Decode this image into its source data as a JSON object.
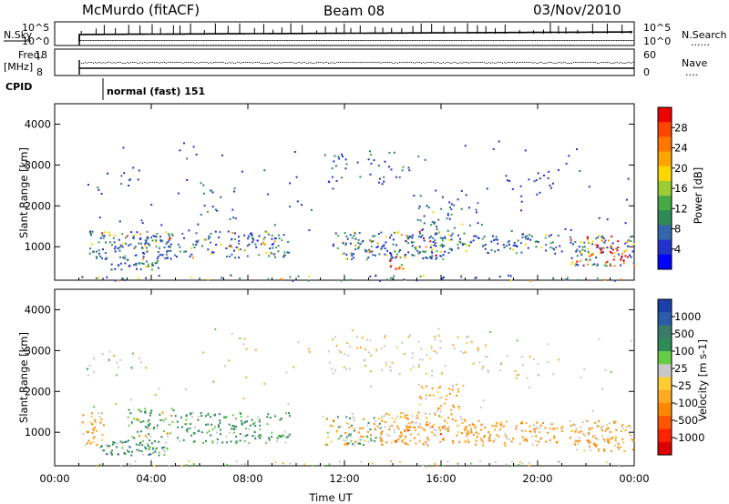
{
  "header": {
    "station": "McMurdo (fitACF)",
    "beam": "Beam 08",
    "date": "03/Nov/2010"
  },
  "strip_panels": {
    "nsky": {
      "label": "N.Sky",
      "ticks": [
        "10^5",
        "10^0"
      ],
      "right_ticks": [
        "10^5",
        "10^0"
      ],
      "right_label": "N.Search",
      "right_marker": "......"
    },
    "freq": {
      "label_line1": "Freq.",
      "label_line2": "[MHz]",
      "ticks": [
        "18",
        "8"
      ],
      "right_ticks": [
        "60",
        "0"
      ],
      "right_label": "Nave",
      "right_marker": "...."
    },
    "cpid": {
      "label": "CPID",
      "program": "normal (fast) 151"
    }
  },
  "chart_data": [
    {
      "type": "heatmap",
      "panel": "power",
      "ylabel": "Slant Range [km]",
      "ylim": [
        180,
        4500
      ],
      "yticks": [
        "1000",
        "2000",
        "3000",
        "4000"
      ],
      "xlim_hours": [
        0,
        24
      ],
      "colorbar": {
        "label": "Power [dB]",
        "ticks": [
          "4",
          "8",
          "12",
          "16",
          "20",
          "24",
          "28"
        ],
        "colors": [
          "#0000ff",
          "#2233cc",
          "#3366aa",
          "#2e8b57",
          "#44aa44",
          "#9acd32",
          "#ffd700",
          "#ffa500",
          "#ff7700",
          "#ff4400",
          "#ee0000"
        ]
      },
      "legend_position": "right"
    },
    {
      "type": "heatmap",
      "panel": "velocity",
      "ylabel": "Slant Range [km]",
      "ylim": [
        180,
        4500
      ],
      "yticks": [
        "1000",
        "2000",
        "3000",
        "4000"
      ],
      "xlim_hours": [
        0,
        24
      ],
      "colorbar": {
        "label": "Velocity [m s-1]",
        "ticks": [
          "1000",
          "500",
          "100",
          "25",
          "-25",
          "-100",
          "-500",
          "-1000"
        ],
        "colors": [
          "#1a3fa8",
          "#2a5caa",
          "#3a7a6a",
          "#2e8b57",
          "#66cc44",
          "#c8c8c8",
          "#ffcc33",
          "#ffaa22",
          "#ff8800",
          "#ff5500",
          "#ff2200",
          "#dd0000"
        ]
      },
      "legend_position": "right"
    }
  ],
  "x_axis": {
    "ticks": [
      "00:00",
      "04:00",
      "08:00",
      "12:00",
      "16:00",
      "20:00",
      "00:00"
    ],
    "label": "Time UT"
  }
}
